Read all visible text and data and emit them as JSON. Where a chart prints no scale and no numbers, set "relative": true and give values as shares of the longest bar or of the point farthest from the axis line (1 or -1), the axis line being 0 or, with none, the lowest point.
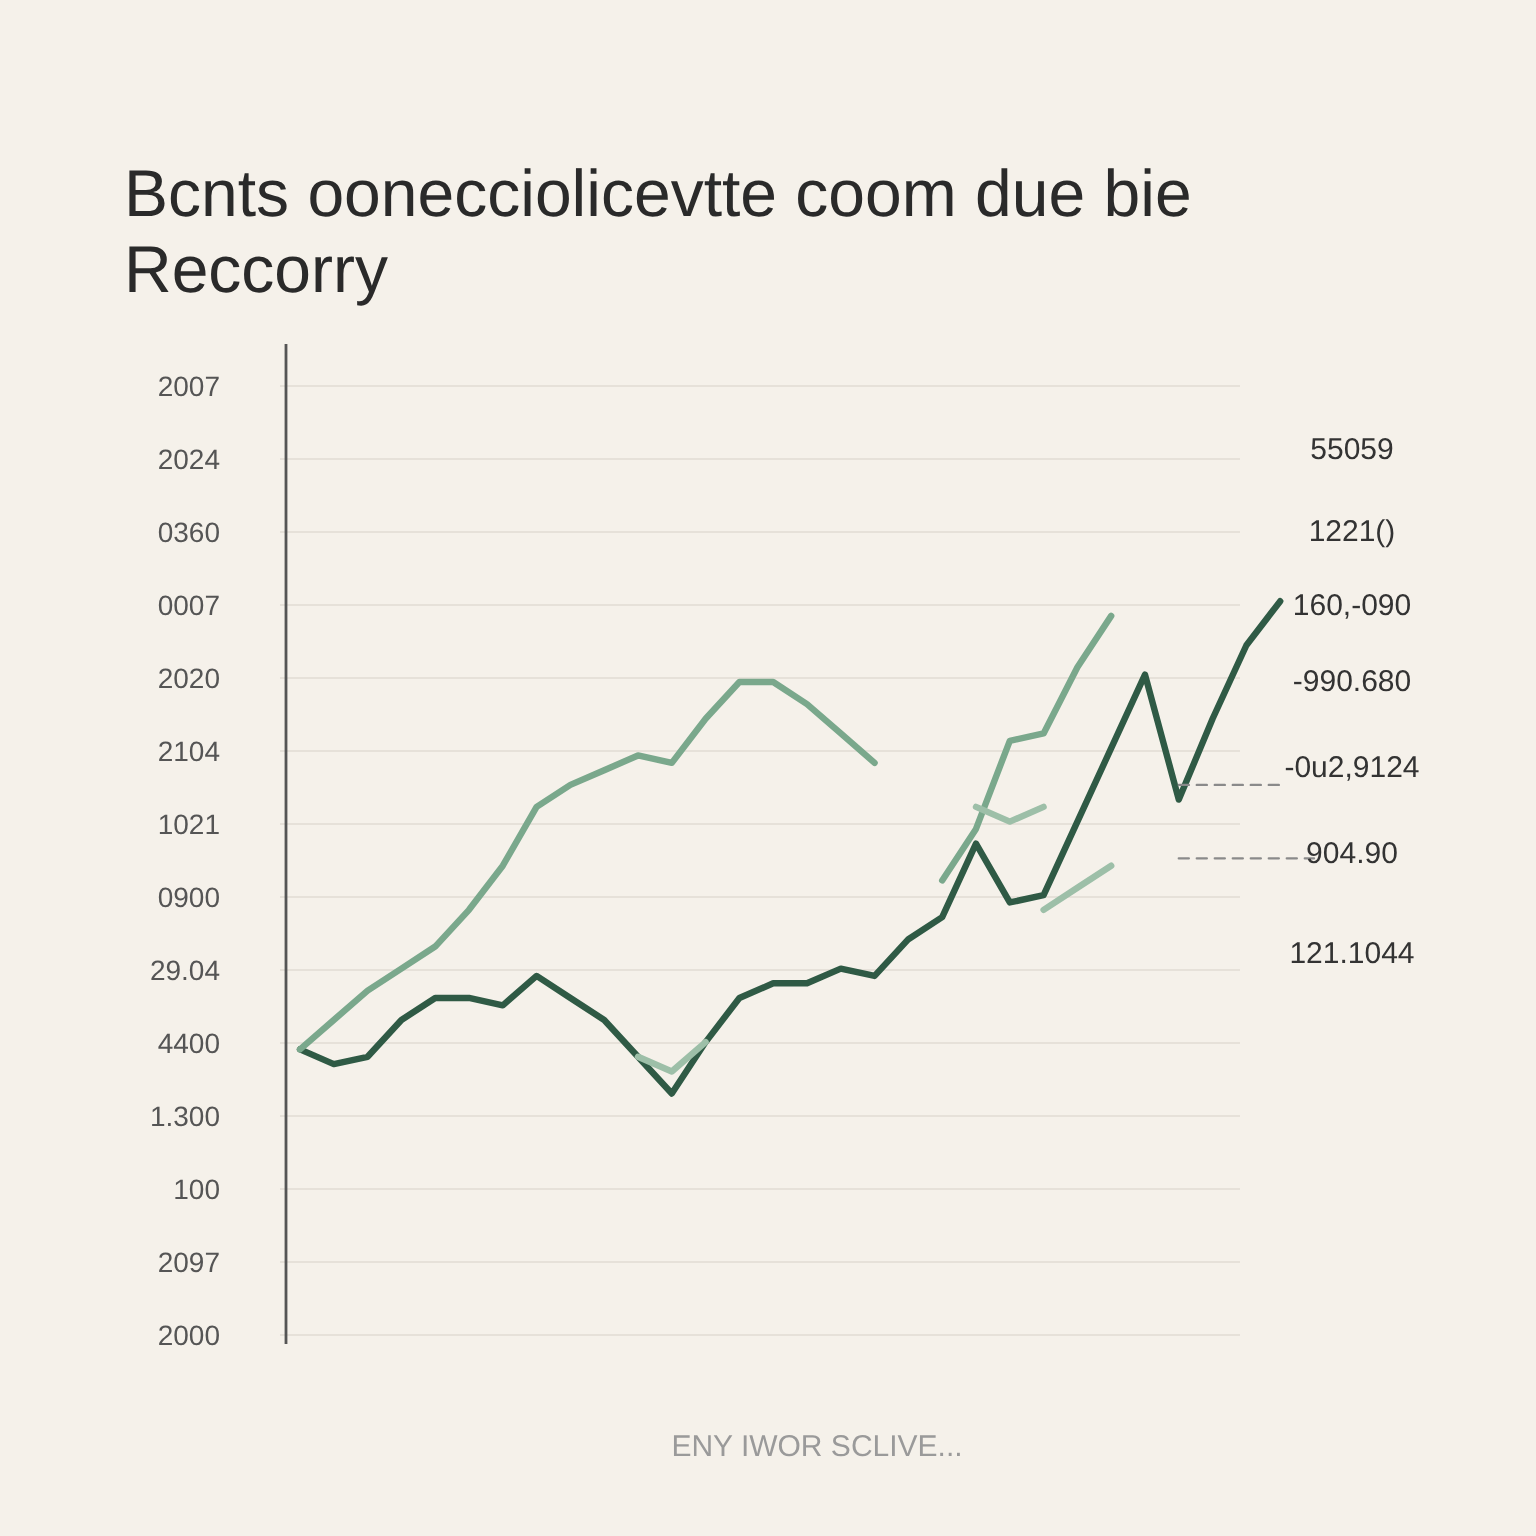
{
  "chart_data": {
    "type": "line",
    "title": "Bcnts oonecciolicevtte coom due bie Reccorry",
    "xlabel": "ENY IWOR SCLIVE...",
    "relative": true,
    "grid": "y",
    "categories": [
      null,
      null,
      null,
      null,
      null,
      null,
      null,
      null,
      null,
      null,
      null,
      null,
      null,
      null,
      null,
      null,
      null,
      null,
      null,
      null,
      null,
      null,
      null,
      null,
      null,
      null,
      null,
      null,
      null,
      null,
      null
    ],
    "series": [
      {
        "color": "#2f5a45",
        "values": [
          0.39,
          0.37,
          0.38,
          0.43,
          0.46,
          0.46,
          0.45,
          0.49,
          0.46,
          0.43,
          0.38,
          0.33,
          0.4,
          0.46,
          0.48,
          0.48,
          0.5,
          0.49,
          0.54,
          0.57,
          0.67,
          0.59,
          0.6,
          0.7,
          0.8,
          0.9,
          0.73,
          0.84,
          0.94,
          1,
          null
        ]
      },
      {
        "color": "#7aa88c",
        "values": [
          0.39,
          0.43,
          0.47,
          0.5,
          0.53,
          0.58,
          0.64,
          0.72,
          0.75,
          0.77,
          0.79,
          0.78,
          0.84,
          0.89,
          0.89,
          0.86,
          0.82,
          0.78,
          null,
          0.62,
          0.69,
          0.81,
          0.82,
          0.91,
          0.98,
          null,
          null,
          null,
          null,
          null,
          null
        ]
      },
      {
        "color": "#9dbfa8",
        "values": [
          null,
          null,
          null,
          null,
          null,
          null,
          null,
          null,
          null,
          null,
          0.38,
          0.36,
          0.4,
          null,
          null,
          null,
          null,
          null,
          null,
          null,
          0.72,
          0.7,
          0.72,
          null,
          null,
          null,
          null,
          null,
          null,
          null,
          null
        ]
      },
      {
        "color": "#9dbfa8",
        "values": [
          null,
          null,
          null,
          null,
          null,
          null,
          null,
          null,
          null,
          null,
          null,
          null,
          null,
          null,
          null,
          null,
          null,
          null,
          null,
          null,
          null,
          null,
          0.58,
          0.61,
          0.64,
          null,
          null,
          null,
          null,
          null,
          null
        ]
      },
      {
        "color": "#8a8a8a",
        "line_style": "dashed",
        "values": [
          null,
          null,
          null,
          null,
          null,
          null,
          null,
          null,
          null,
          null,
          null,
          null,
          null,
          null,
          null,
          null,
          null,
          null,
          null,
          null,
          null,
          null,
          null,
          null,
          null,
          null,
          0.75,
          0.75,
          0.75,
          0.75,
          null
        ]
      },
      {
        "color": "#8a8a8a",
        "line_style": "dashed",
        "values": [
          null,
          null,
          null,
          null,
          null,
          null,
          null,
          null,
          null,
          null,
          null,
          null,
          null,
          null,
          null,
          null,
          null,
          null,
          null,
          null,
          null,
          null,
          null,
          null,
          null,
          null,
          0.65,
          0.65,
          0.65,
          0.65,
          0.65
        ]
      }
    ],
    "annotations": [
      "2007",
      "2024",
      "0360",
      "0007",
      "2020",
      "2104",
      "1021",
      "0900",
      "29.04",
      "4400",
      "1.300",
      "100",
      "2097",
      "2000",
      "55059",
      "1221()",
      "160,-090",
      "-990.680",
      "-0u2,9124",
      "904.90",
      "121.1044"
    ]
  }
}
